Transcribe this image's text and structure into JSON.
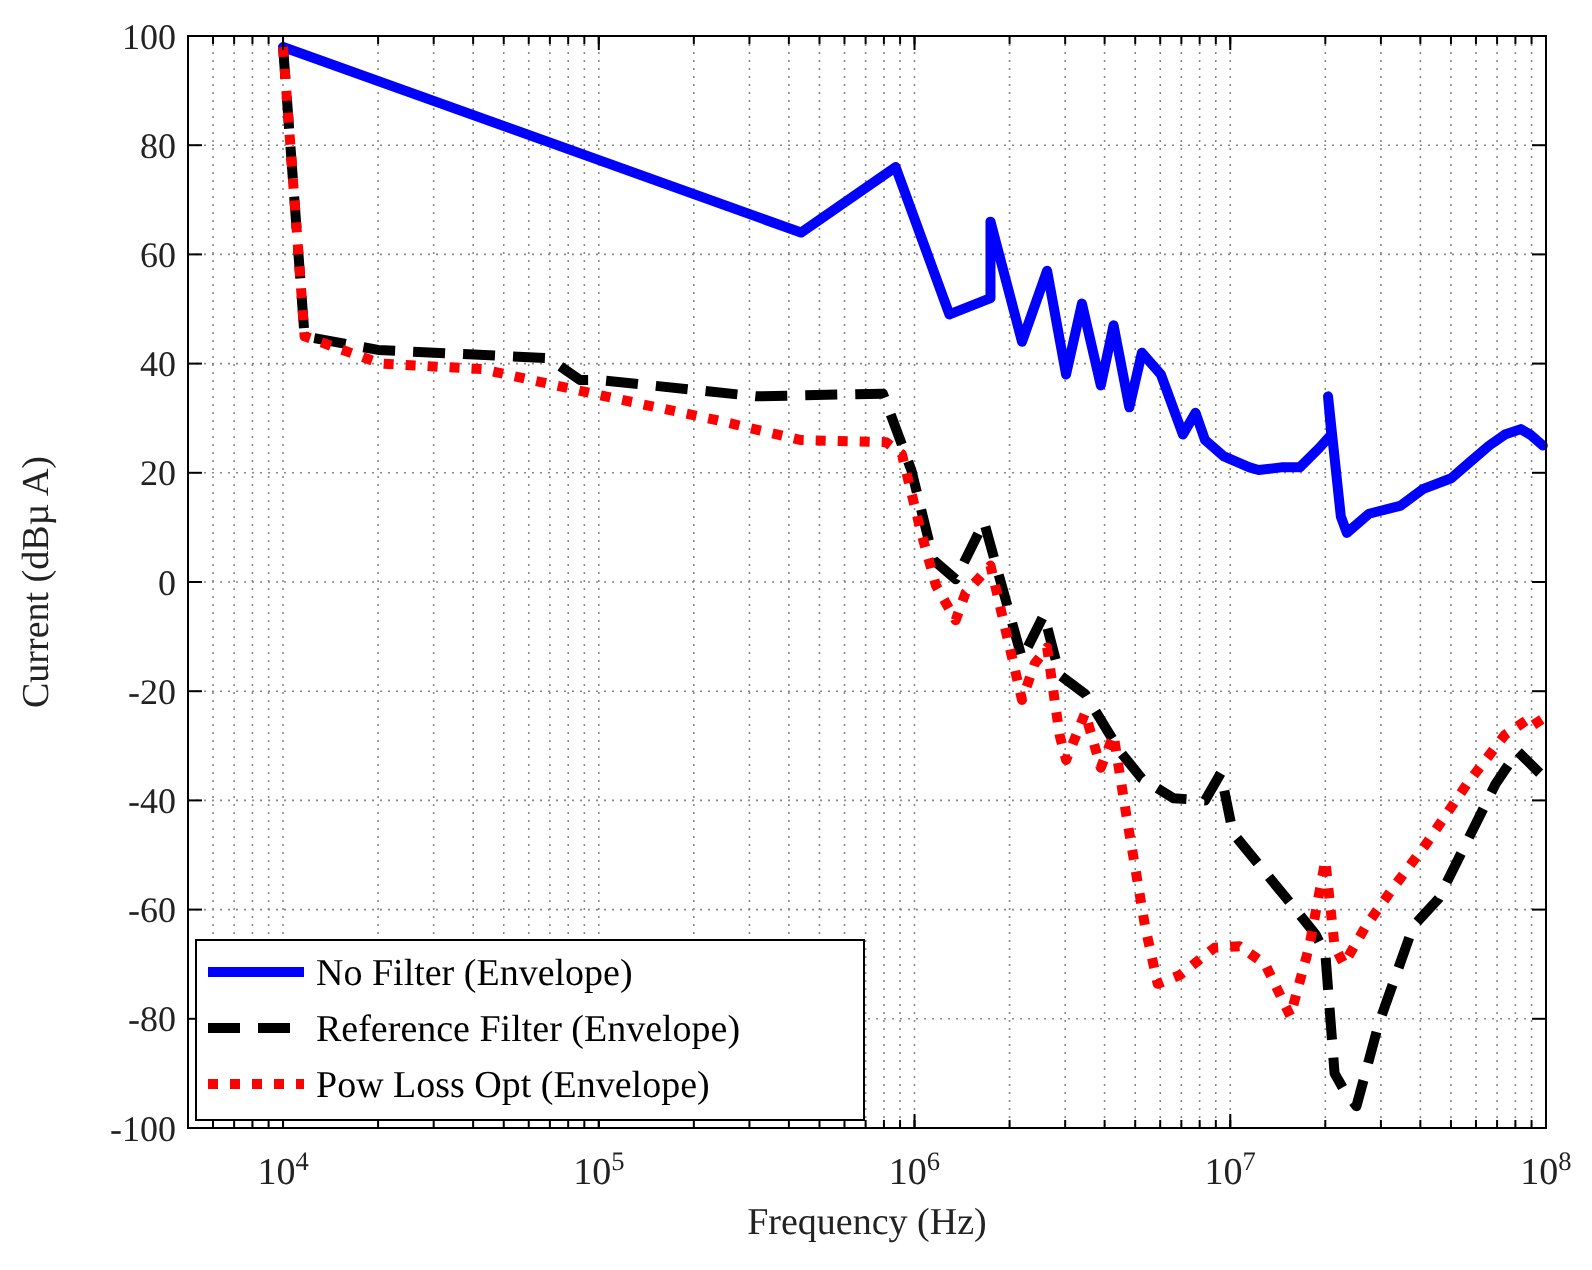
{
  "chart_data": {
    "type": "line",
    "xlabel": "Frequency (Hz)",
    "ylabel": "Current (dBµ A)",
    "log": "x",
    "grid": true,
    "legend": "bottom left",
    "marker": "none",
    "xlim": [
      5000,
      100000000
    ],
    "xticks": [
      {
        "value": 10000,
        "label": "10$^{4}$"
      },
      {
        "value": 100000,
        "label": "10$^{5}$"
      },
      {
        "value": 1000000,
        "label": "10$^{6}$"
      },
      {
        "value": 10000000,
        "label": "10$^{7}$"
      },
      {
        "value": 100000000,
        "label": "10$^{8}$"
      }
    ],
    "ylim": [
      -100,
      100
    ],
    "yticks": [
      -100,
      -80,
      -60,
      -40,
      -20,
      0,
      20,
      40,
      60,
      80,
      100
    ],
    "series": [
      {
        "name": "No Filter (Envelope)",
        "color": "#0000ff",
        "line_style": "solid",
        "x": [
          10000,
          437000,
          871000,
          1290000,
          1740000,
          1740000,
          2190000,
          2630000,
          3020000,
          3390000,
          3890000,
          4270000,
          4790000,
          5250000,
          6030000,
          7080000,
          7760000,
          8320000,
          9550000,
          11500000,
          12300000,
          14500000,
          16600000,
          19100000,
          20900000,
          20400000,
          22400000,
          23400000,
          27500000,
          34700000,
          40700000,
          50100000,
          57500000,
          66100000,
          74100000,
          83200000,
          89100000,
          97700000
        ],
        "values": [
          98,
          64,
          76,
          49,
          52,
          66,
          44,
          57,
          38,
          51,
          36,
          47,
          32,
          42,
          38,
          27,
          31,
          26,
          23,
          21,
          20.5,
          21,
          21,
          24.5,
          27,
          34,
          12,
          9,
          12.5,
          14,
          17,
          19,
          22,
          25,
          27,
          28,
          27,
          25
        ]
      },
      {
        "name": "Reference Filter (Envelope)",
        "color": "#000000",
        "line_style": "dashed",
        "x": [
          10000,
          11700,
          20000,
          69200,
          87100,
          100000,
          316000,
          794000,
          977000,
          1150000,
          1350000,
          1660000,
          2190000,
          2570000,
          2880000,
          3470000,
          4470000,
          5250000,
          6610000,
          8320000,
          9330000,
          10200000,
          15100000,
          18600000,
          20000000,
          21400000,
          22900000,
          25100000,
          29500000,
          38000000,
          45700000,
          69200000,
          81300000,
          95500000
        ],
        "values": [
          98,
          45,
          42.5,
          41,
          37,
          37,
          34,
          34.5,
          20.5,
          4,
          0.5,
          11,
          -14,
          -6,
          -17,
          -20.5,
          -31,
          -36,
          -39.6,
          -40,
          -35,
          -46,
          -58,
          -64.5,
          -68,
          -90,
          -93,
          -96,
          -81,
          -63,
          -58,
          -37,
          -31,
          -35
        ]
      },
      {
        "name": "Pow Loss Opt (Envelope)",
        "color": "#ff0000",
        "line_style": "dotted",
        "x": [
          10000,
          11700,
          20400,
          42700,
          105000,
          234000,
          437000,
          813000,
          912000,
          1050000,
          1170000,
          1350000,
          1450000,
          1740000,
          2190000,
          2400000,
          2630000,
          2880000,
          3020000,
          3470000,
          3890000,
          4270000,
          4680000,
          5370000,
          5890000,
          6920000,
          8910000,
          10700000,
          12900000,
          15500000,
          17800000,
          20000000,
          21400000,
          22900000,
          26900000,
          33100000,
          41700000,
          56200000,
          74100000,
          91200000,
          100000000
        ],
        "values": [
          98,
          45,
          40,
          39,
          34,
          29.7,
          26,
          25.6,
          23.4,
          9,
          -0.7,
          -7,
          -2,
          3,
          -21.6,
          -15,
          -12,
          -28,
          -32.6,
          -24,
          -34,
          -28,
          -42.5,
          -63,
          -73.6,
          -72,
          -67,
          -66.7,
          -70,
          -79.5,
          -66.7,
          -51,
          -66.7,
          -70,
          -63,
          -55.7,
          -48,
          -37,
          -28,
          -24.5,
          -28
        ]
      }
    ]
  }
}
